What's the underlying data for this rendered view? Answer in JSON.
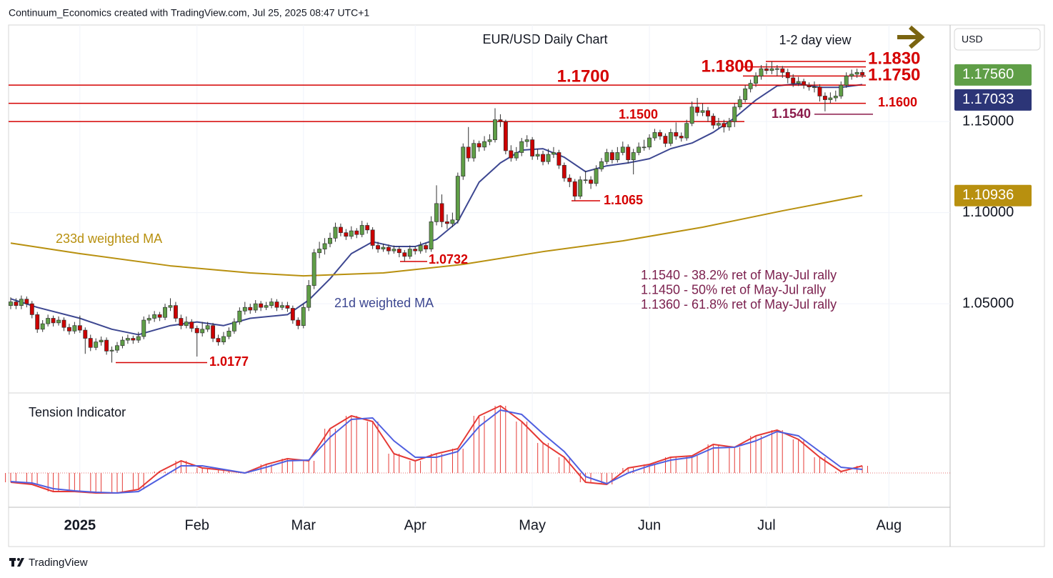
{
  "header": {
    "credit": "Continuum_Economics created with TradingView.com, Jul 25, 2025 08:47 UTC+1"
  },
  "chart_data": {
    "type": "candlestick",
    "title": "EUR/USD Daily Chart",
    "subtitle": "1-2 day view",
    "currency": "USD",
    "ylim": [
      1.0018,
      1.203
    ],
    "yticks": [
      {
        "value": 1.15,
        "label": "1.15000"
      },
      {
        "value": 1.1,
        "label": "1.10000"
      },
      {
        "value": 1.05,
        "label": "1.05000"
      }
    ],
    "xlim": [
      -0.4,
      176.5
    ],
    "xticks": [
      {
        "value": 13,
        "label": "2025"
      },
      {
        "value": 35,
        "label": "Feb"
      },
      {
        "value": 55,
        "label": "Mar"
      },
      {
        "value": 76,
        "label": "Apr"
      },
      {
        "value": 98,
        "label": "May"
      },
      {
        "value": 120,
        "label": "Jun"
      },
      {
        "value": 142,
        "label": "Jul"
      },
      {
        "value": 165,
        "label": "Aug"
      }
    ],
    "grid": true,
    "up_color": "#5f9e47",
    "down_color": "#cc0000",
    "candles": [
      [
        1.049,
        1.0535,
        1.047,
        1.051
      ],
      [
        1.051,
        1.053,
        1.047,
        1.049
      ],
      [
        1.049,
        1.0545,
        1.047,
        1.0525
      ],
      [
        1.0525,
        1.054,
        1.048,
        1.05
      ],
      [
        1.05,
        1.0515,
        1.042,
        1.044
      ],
      [
        1.044,
        1.0455,
        1.034,
        1.036
      ],
      [
        1.036,
        1.041,
        1.0345,
        1.039
      ],
      [
        1.039,
        1.044,
        1.0375,
        1.042
      ],
      [
        1.042,
        1.0435,
        1.0375,
        1.0395
      ],
      [
        1.0395,
        1.043,
        1.038,
        1.041
      ],
      [
        1.041,
        1.0425,
        1.035,
        1.037
      ],
      [
        1.037,
        1.039,
        1.033,
        1.035
      ],
      [
        1.035,
        1.04,
        1.0335,
        1.038
      ],
      [
        1.038,
        1.0435,
        1.034,
        1.0355
      ],
      [
        1.0355,
        1.037,
        1.0225,
        1.031
      ],
      [
        1.031,
        1.033,
        1.024,
        1.026
      ],
      [
        1.026,
        1.031,
        1.0245,
        1.029
      ],
      [
        1.029,
        1.032,
        1.027,
        1.03
      ],
      [
        1.03,
        1.0315,
        1.022,
        1.024
      ],
      [
        1.024,
        1.0265,
        1.0177,
        1.0245
      ],
      [
        1.0245,
        1.029,
        1.023,
        1.027
      ],
      [
        1.027,
        1.032,
        1.0255,
        1.03
      ],
      [
        1.03,
        1.033,
        1.028,
        1.031
      ],
      [
        1.031,
        1.0325,
        1.028,
        1.03
      ],
      [
        1.03,
        1.0345,
        1.0285,
        1.032
      ],
      [
        1.032,
        1.043,
        1.0305,
        1.041
      ],
      [
        1.041,
        1.044,
        1.039,
        1.042
      ],
      [
        1.042,
        1.046,
        1.04,
        1.044
      ],
      [
        1.044,
        1.0455,
        1.0405,
        1.0425
      ],
      [
        1.0425,
        1.05,
        1.041,
        1.048
      ],
      [
        1.048,
        1.053,
        1.046,
        1.049
      ],
      [
        1.049,
        1.051,
        1.04,
        1.042
      ],
      [
        1.042,
        1.044,
        1.036,
        1.038
      ],
      [
        1.038,
        1.043,
        1.0365,
        1.04
      ],
      [
        1.04,
        1.0415,
        1.0345,
        1.0365
      ],
      [
        1.0365,
        1.038,
        1.021,
        1.034
      ],
      [
        1.034,
        1.04,
        1.032,
        1.036
      ],
      [
        1.036,
        1.04,
        1.0345,
        1.038
      ],
      [
        1.038,
        1.0395,
        1.029,
        1.031
      ],
      [
        1.031,
        1.033,
        1.027,
        1.029
      ],
      [
        1.029,
        1.0345,
        1.0275,
        1.032
      ],
      [
        1.032,
        1.037,
        1.0305,
        1.035
      ],
      [
        1.035,
        1.042,
        1.0335,
        1.04
      ],
      [
        1.04,
        1.048,
        1.0385,
        1.046
      ],
      [
        1.046,
        1.051,
        1.044,
        1.048
      ],
      [
        1.048,
        1.05,
        1.0445,
        1.0465
      ],
      [
        1.0465,
        1.052,
        1.045,
        1.05
      ],
      [
        1.05,
        1.0515,
        1.046,
        1.048
      ],
      [
        1.048,
        1.051,
        1.0465,
        1.049
      ],
      [
        1.049,
        1.053,
        1.0475,
        1.051
      ],
      [
        1.051,
        1.0525,
        1.046,
        1.048
      ],
      [
        1.048,
        1.051,
        1.0465,
        1.049
      ],
      [
        1.049,
        1.051,
        1.0455,
        1.0475
      ],
      [
        1.0475,
        1.049,
        1.039,
        1.041
      ],
      [
        1.041,
        1.0425,
        1.036,
        1.038
      ],
      [
        1.038,
        1.05,
        1.0365,
        1.048
      ],
      [
        1.048,
        1.063,
        1.046,
        1.06
      ],
      [
        1.06,
        1.08,
        1.058,
        1.078
      ],
      [
        1.078,
        1.084,
        1.075,
        1.08
      ],
      [
        1.08,
        1.086,
        1.077,
        1.083
      ],
      [
        1.083,
        1.089,
        1.081,
        1.086
      ],
      [
        1.086,
        1.0945,
        1.084,
        1.092
      ],
      [
        1.092,
        1.094,
        1.087,
        1.089
      ],
      [
        1.089,
        1.091,
        1.085,
        1.087
      ],
      [
        1.087,
        1.0925,
        1.0855,
        1.09
      ],
      [
        1.09,
        1.0915,
        1.086,
        1.088
      ],
      [
        1.088,
        1.0955,
        1.0865,
        1.093
      ],
      [
        1.093,
        1.0945,
        1.0885,
        1.0905
      ],
      [
        1.0905,
        1.092,
        1.08,
        1.082
      ],
      [
        1.082,
        1.084,
        1.078,
        1.08
      ],
      [
        1.08,
        1.083,
        1.0785,
        1.081
      ],
      [
        1.081,
        1.0825,
        1.077,
        1.079
      ],
      [
        1.079,
        1.082,
        1.0775,
        1.08
      ],
      [
        1.08,
        1.0815,
        1.0755,
        1.078
      ],
      [
        1.078,
        1.0795,
        1.0732,
        1.076
      ],
      [
        1.076,
        1.082,
        1.0745,
        1.08
      ],
      [
        1.08,
        1.0815,
        1.077,
        1.079
      ],
      [
        1.079,
        1.084,
        1.0775,
        1.082
      ],
      [
        1.082,
        1.0835,
        1.078,
        1.08
      ],
      [
        1.08,
        1.098,
        1.0785,
        1.095
      ],
      [
        1.095,
        1.115,
        1.093,
        1.105
      ],
      [
        1.105,
        1.11,
        1.092,
        1.095
      ],
      [
        1.095,
        1.099,
        1.091,
        1.094
      ],
      [
        1.094,
        1.1,
        1.092,
        1.096
      ],
      [
        1.096,
        1.122,
        1.094,
        1.12
      ],
      [
        1.12,
        1.138,
        1.118,
        1.136
      ],
      [
        1.136,
        1.147,
        1.128,
        1.13
      ],
      [
        1.13,
        1.14,
        1.128,
        1.138
      ],
      [
        1.138,
        1.1395,
        1.1335,
        1.136
      ],
      [
        1.136,
        1.142,
        1.134,
        1.139
      ],
      [
        1.139,
        1.143,
        1.137,
        1.14
      ],
      [
        1.14,
        1.1573,
        1.1385,
        1.151
      ],
      [
        1.151,
        1.154,
        1.147,
        1.15
      ],
      [
        1.15,
        1.151,
        1.132,
        1.134
      ],
      [
        1.134,
        1.137,
        1.128,
        1.13
      ],
      [
        1.13,
        1.136,
        1.1285,
        1.133
      ],
      [
        1.133,
        1.141,
        1.131,
        1.139
      ],
      [
        1.139,
        1.1425,
        1.136,
        1.14
      ],
      [
        1.14,
        1.1415,
        1.129,
        1.131
      ],
      [
        1.131,
        1.135,
        1.129,
        1.132
      ],
      [
        1.132,
        1.134,
        1.126,
        1.128
      ],
      [
        1.128,
        1.135,
        1.1265,
        1.132
      ],
      [
        1.132,
        1.136,
        1.13,
        1.133
      ],
      [
        1.133,
        1.1345,
        1.124,
        1.126
      ],
      [
        1.126,
        1.1275,
        1.117,
        1.119
      ],
      [
        1.119,
        1.121,
        1.114,
        1.117
      ],
      [
        1.117,
        1.1185,
        1.1065,
        1.109
      ],
      [
        1.109,
        1.12,
        1.1075,
        1.118
      ],
      [
        1.118,
        1.123,
        1.116,
        1.118
      ],
      [
        1.118,
        1.12,
        1.113,
        1.116
      ],
      [
        1.116,
        1.126,
        1.1145,
        1.124
      ],
      [
        1.124,
        1.13,
        1.1225,
        1.128
      ],
      [
        1.128,
        1.135,
        1.1265,
        1.133
      ],
      [
        1.133,
        1.1345,
        1.127,
        1.129
      ],
      [
        1.129,
        1.136,
        1.1275,
        1.133
      ],
      [
        1.133,
        1.139,
        1.1315,
        1.136
      ],
      [
        1.136,
        1.1375,
        1.127,
        1.129
      ],
      [
        1.129,
        1.135,
        1.121,
        1.133
      ],
      [
        1.133,
        1.1385,
        1.1315,
        1.136
      ],
      [
        1.136,
        1.14,
        1.134,
        1.136
      ],
      [
        1.136,
        1.143,
        1.1345,
        1.141
      ],
      [
        1.141,
        1.146,
        1.1395,
        1.144
      ],
      [
        1.144,
        1.1455,
        1.14,
        1.142
      ],
      [
        1.142,
        1.1435,
        1.136,
        1.138
      ],
      [
        1.138,
        1.146,
        1.1365,
        1.144
      ],
      [
        1.144,
        1.1495,
        1.14,
        1.142
      ],
      [
        1.142,
        1.144,
        1.139,
        1.141
      ],
      [
        1.141,
        1.151,
        1.1395,
        1.149
      ],
      [
        1.149,
        1.161,
        1.1475,
        1.158
      ],
      [
        1.158,
        1.163,
        1.153,
        1.155
      ],
      [
        1.155,
        1.16,
        1.153,
        1.156
      ],
      [
        1.156,
        1.158,
        1.15,
        1.153
      ],
      [
        1.153,
        1.1545,
        1.146,
        1.148
      ],
      [
        1.148,
        1.152,
        1.146,
        1.149
      ],
      [
        1.149,
        1.151,
        1.144,
        1.147
      ],
      [
        1.147,
        1.152,
        1.145,
        1.15
      ],
      [
        1.15,
        1.16,
        1.147,
        1.158
      ],
      [
        1.158,
        1.164,
        1.1565,
        1.162
      ],
      [
        1.162,
        1.17,
        1.1605,
        1.168
      ],
      [
        1.168,
        1.173,
        1.166,
        1.171
      ],
      [
        1.171,
        1.177,
        1.169,
        1.175
      ],
      [
        1.175,
        1.181,
        1.173,
        1.179
      ],
      [
        1.179,
        1.182,
        1.176,
        1.178
      ],
      [
        1.178,
        1.183,
        1.176,
        1.179
      ],
      [
        1.179,
        1.181,
        1.175,
        1.179
      ],
      [
        1.179,
        1.1805,
        1.174,
        1.177
      ],
      [
        1.177,
        1.179,
        1.171,
        1.174
      ],
      [
        1.174,
        1.176,
        1.169,
        1.171
      ],
      [
        1.171,
        1.1745,
        1.1695,
        1.172
      ],
      [
        1.172,
        1.1735,
        1.168,
        1.17
      ],
      [
        1.17,
        1.1715,
        1.167,
        1.169
      ],
      [
        1.169,
        1.172,
        1.166,
        1.169
      ],
      [
        1.169,
        1.1705,
        1.161,
        1.164
      ],
      [
        1.164,
        1.166,
        1.1556,
        1.162
      ],
      [
        1.162,
        1.166,
        1.16,
        1.163
      ],
      [
        1.163,
        1.167,
        1.161,
        1.164
      ],
      [
        1.164,
        1.172,
        1.1625,
        1.17
      ],
      [
        1.17,
        1.177,
        1.1685,
        1.175
      ],
      [
        1.175,
        1.1785,
        1.173,
        1.176
      ],
      [
        1.176,
        1.179,
        1.174,
        1.177
      ],
      [
        1.177,
        1.1785,
        1.174,
        1.1756
      ]
    ],
    "series": [
      {
        "name": "21d weighted MA",
        "color": "#3d4791",
        "x": [
          0,
          5,
          13,
          19,
          24,
          30,
          35,
          40,
          45,
          52,
          56,
          60,
          64,
          68,
          72,
          76,
          80,
          84,
          88,
          92,
          96,
          100,
          104,
          108,
          112,
          116,
          120,
          124,
          128,
          132,
          136,
          140,
          144,
          148,
          152,
          156,
          160
        ],
        "values": [
          1.0527,
          1.048,
          1.042,
          1.036,
          1.033,
          1.038,
          1.04,
          1.038,
          1.042,
          1.044,
          1.052,
          1.0637,
          1.0775,
          1.084,
          1.0814,
          1.0814,
          1.0853,
          1.095,
          1.1167,
          1.1273,
          1.1343,
          1.1351,
          1.1304,
          1.1225,
          1.1257,
          1.1273,
          1.1296,
          1.1351,
          1.1382,
          1.1441,
          1.152,
          1.1618,
          1.1696,
          1.1708,
          1.1688,
          1.1688,
          1.1703
        ]
      },
      {
        "name": "233d weighted MA",
        "color": "#b8900f",
        "x": [
          0,
          13,
          30,
          45,
          55,
          70,
          85,
          100,
          115,
          130,
          145,
          160
        ],
        "values": [
          1.0833,
          1.0775,
          1.0708,
          1.0669,
          1.0653,
          1.0669,
          1.0716,
          1.0786,
          1.0845,
          1.092,
          1.101,
          1.1094
        ]
      }
    ],
    "levels": [
      {
        "value": 1.183,
        "label": "1.1830",
        "color": "#d50000"
      },
      {
        "value": 1.18,
        "label": "1.1800",
        "color": "#d50000"
      },
      {
        "value": 1.175,
        "label": "1.1750",
        "color": "#d50000"
      },
      {
        "value": 1.17,
        "label": "1.1700",
        "color": "#d50000"
      },
      {
        "value": 1.16,
        "label": "1.1600",
        "color": "#d50000"
      },
      {
        "value": 1.15,
        "label": "1.1500",
        "color": "#d50000"
      },
      {
        "value": 1.154,
        "label": "1.1540",
        "color": "#8b1a4a"
      },
      {
        "value": 1.1065,
        "label": "1.1065",
        "color": "#d50000"
      },
      {
        "value": 1.0732,
        "label": "1.0732",
        "color": "#d50000"
      },
      {
        "value": 1.0177,
        "label": "1.0177",
        "color": "#d50000"
      }
    ],
    "price_labels": [
      {
        "value": 1.1756,
        "label": "1.17560",
        "color": "#5f9e47"
      },
      {
        "value": 1.17033,
        "label": "1.17033",
        "color": "#2c3577"
      },
      {
        "value": 1.10936,
        "label": "1.10936",
        "color": "#b8900f"
      }
    ],
    "notes": [
      "1.1540 - 38.2% ret of May-Jul rally",
      "1.1450 - 50% ret of May-Jul rally",
      "1.1360 - 61.8% ret of May-Jul rally"
    ],
    "indicator": {
      "type": "histogram",
      "title": "Tension Indicator",
      "ylim": [
        -48,
        112
      ],
      "x": [
        0,
        4,
        8,
        12,
        16,
        20,
        24,
        28,
        32,
        36,
        40,
        44,
        48,
        52,
        56,
        60,
        64,
        68,
        72,
        76,
        80,
        84,
        88,
        92,
        96,
        100,
        104,
        108,
        112,
        116,
        120,
        124,
        128,
        132,
        136,
        140,
        144,
        148,
        152,
        156,
        160
      ],
      "series": [
        {
          "color": "#e53935",
          "values": [
            -13,
            -16,
            -26,
            -26,
            -28,
            -28,
            -23,
            2,
            17,
            7,
            4,
            0,
            12,
            20,
            17,
            62,
            80,
            72,
            27,
            17,
            27,
            34,
            80,
            94,
            72,
            42,
            22,
            -13,
            -16,
            7,
            12,
            22,
            24,
            40,
            36,
            52,
            60,
            47,
            22,
            2,
            10
          ]
        },
        {
          "color": "#4f5fe0",
          "values": [
            -12,
            -14,
            -22,
            -25,
            -27,
            -28,
            -26,
            -8,
            10,
            10,
            5,
            0,
            8,
            17,
            18,
            50,
            75,
            77,
            45,
            22,
            22,
            30,
            65,
            88,
            82,
            55,
            30,
            -5,
            -15,
            0,
            10,
            18,
            22,
            35,
            36,
            45,
            58,
            52,
            30,
            8,
            5
          ]
        }
      ]
    }
  },
  "footer": {
    "brand": "TradingView"
  }
}
